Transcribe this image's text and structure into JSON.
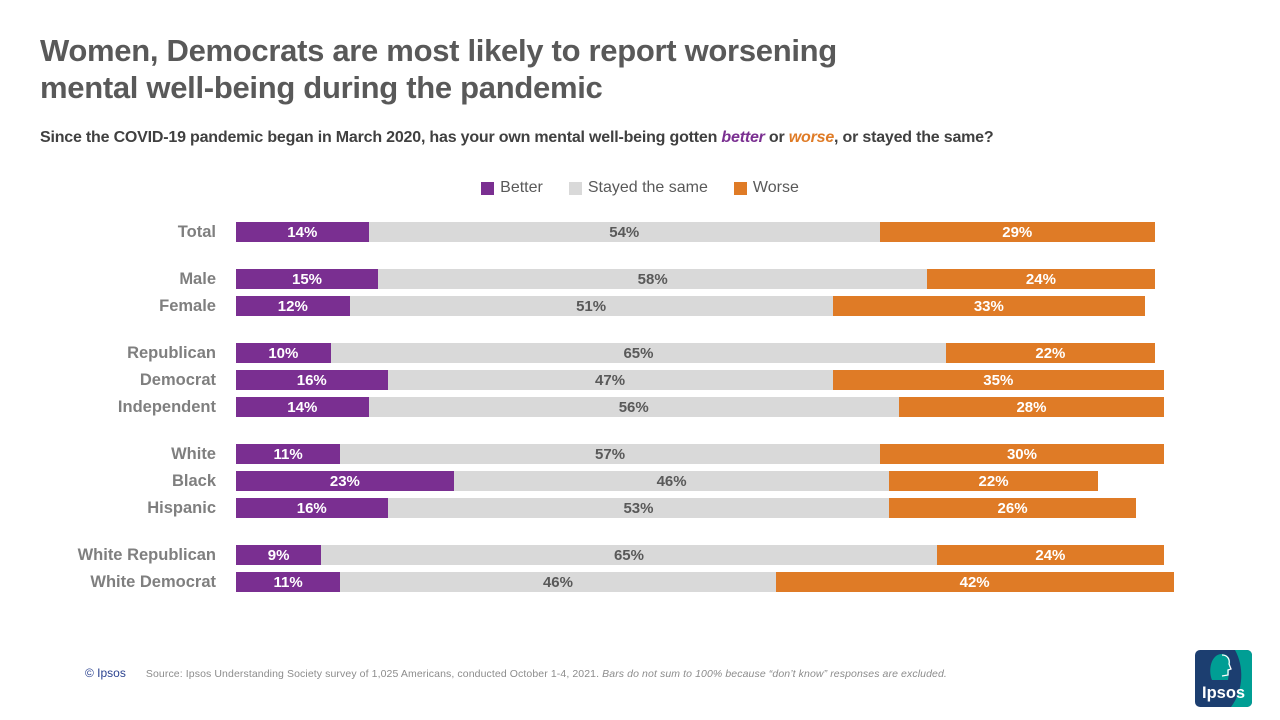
{
  "title": {
    "line1": "Women, Democrats are most likely to report worsening",
    "line2": "mental well-being during the pandemic"
  },
  "subtitle": {
    "prefix": "Since the COVID-19 pandemic began in March 2020, has your own mental well-being gotten ",
    "better_word": "better",
    "or_word": " or ",
    "worse_word": "worse",
    "suffix": ", or stayed the same?"
  },
  "colors": {
    "better": "#7A2F91",
    "stayed_same": "#D9D9D9",
    "worse": "#DF7B26",
    "title_gray": "#595959",
    "label_gray": "#7F7F7F",
    "ipsos_navy": "#1C3E70",
    "ipsos_teal": "#009E94"
  },
  "chart_data": {
    "type": "bar",
    "orientation": "horizontal",
    "stacked": true,
    "xlim": [
      0,
      100
    ],
    "value_suffix": "%",
    "grid": false,
    "legend_position": "top-center",
    "categories": [
      "Total",
      "Male",
      "Female",
      "Republican",
      "Democrat",
      "Independent",
      "White",
      "Black",
      "Hispanic",
      "White Republican",
      "White Democrat"
    ],
    "groups": [
      [
        "Total"
      ],
      [
        "Male",
        "Female"
      ],
      [
        "Republican",
        "Democrat",
        "Independent"
      ],
      [
        "White",
        "Black",
        "Hispanic"
      ],
      [
        "White Republican",
        "White Democrat"
      ]
    ],
    "series": [
      {
        "key": "better",
        "name": "Better",
        "color": "#7A2F91",
        "label_color": "#FFFFFF",
        "values": [
          14,
          15,
          12,
          10,
          16,
          14,
          11,
          23,
          16,
          9,
          11
        ]
      },
      {
        "key": "same",
        "name": "Stayed the same",
        "color": "#D9D9D9",
        "label_color": "#595959",
        "values": [
          54,
          58,
          51,
          65,
          47,
          56,
          57,
          46,
          53,
          65,
          46
        ]
      },
      {
        "key": "worse",
        "name": "Worse",
        "color": "#DF7B26",
        "label_color": "#FFFFFF",
        "values": [
          29,
          24,
          33,
          22,
          35,
          28,
          30,
          22,
          26,
          24,
          42
        ]
      }
    ]
  },
  "footer": {
    "copyright": "© Ipsos",
    "source_regular": "Source: Ipsos Understanding Society survey of 1,025 Americans, conducted October 1-4, 2021. ",
    "source_italic": "Bars do not sum to 100% because “don’t know” responses are excluded.",
    "logo_text": "Ipsos"
  }
}
